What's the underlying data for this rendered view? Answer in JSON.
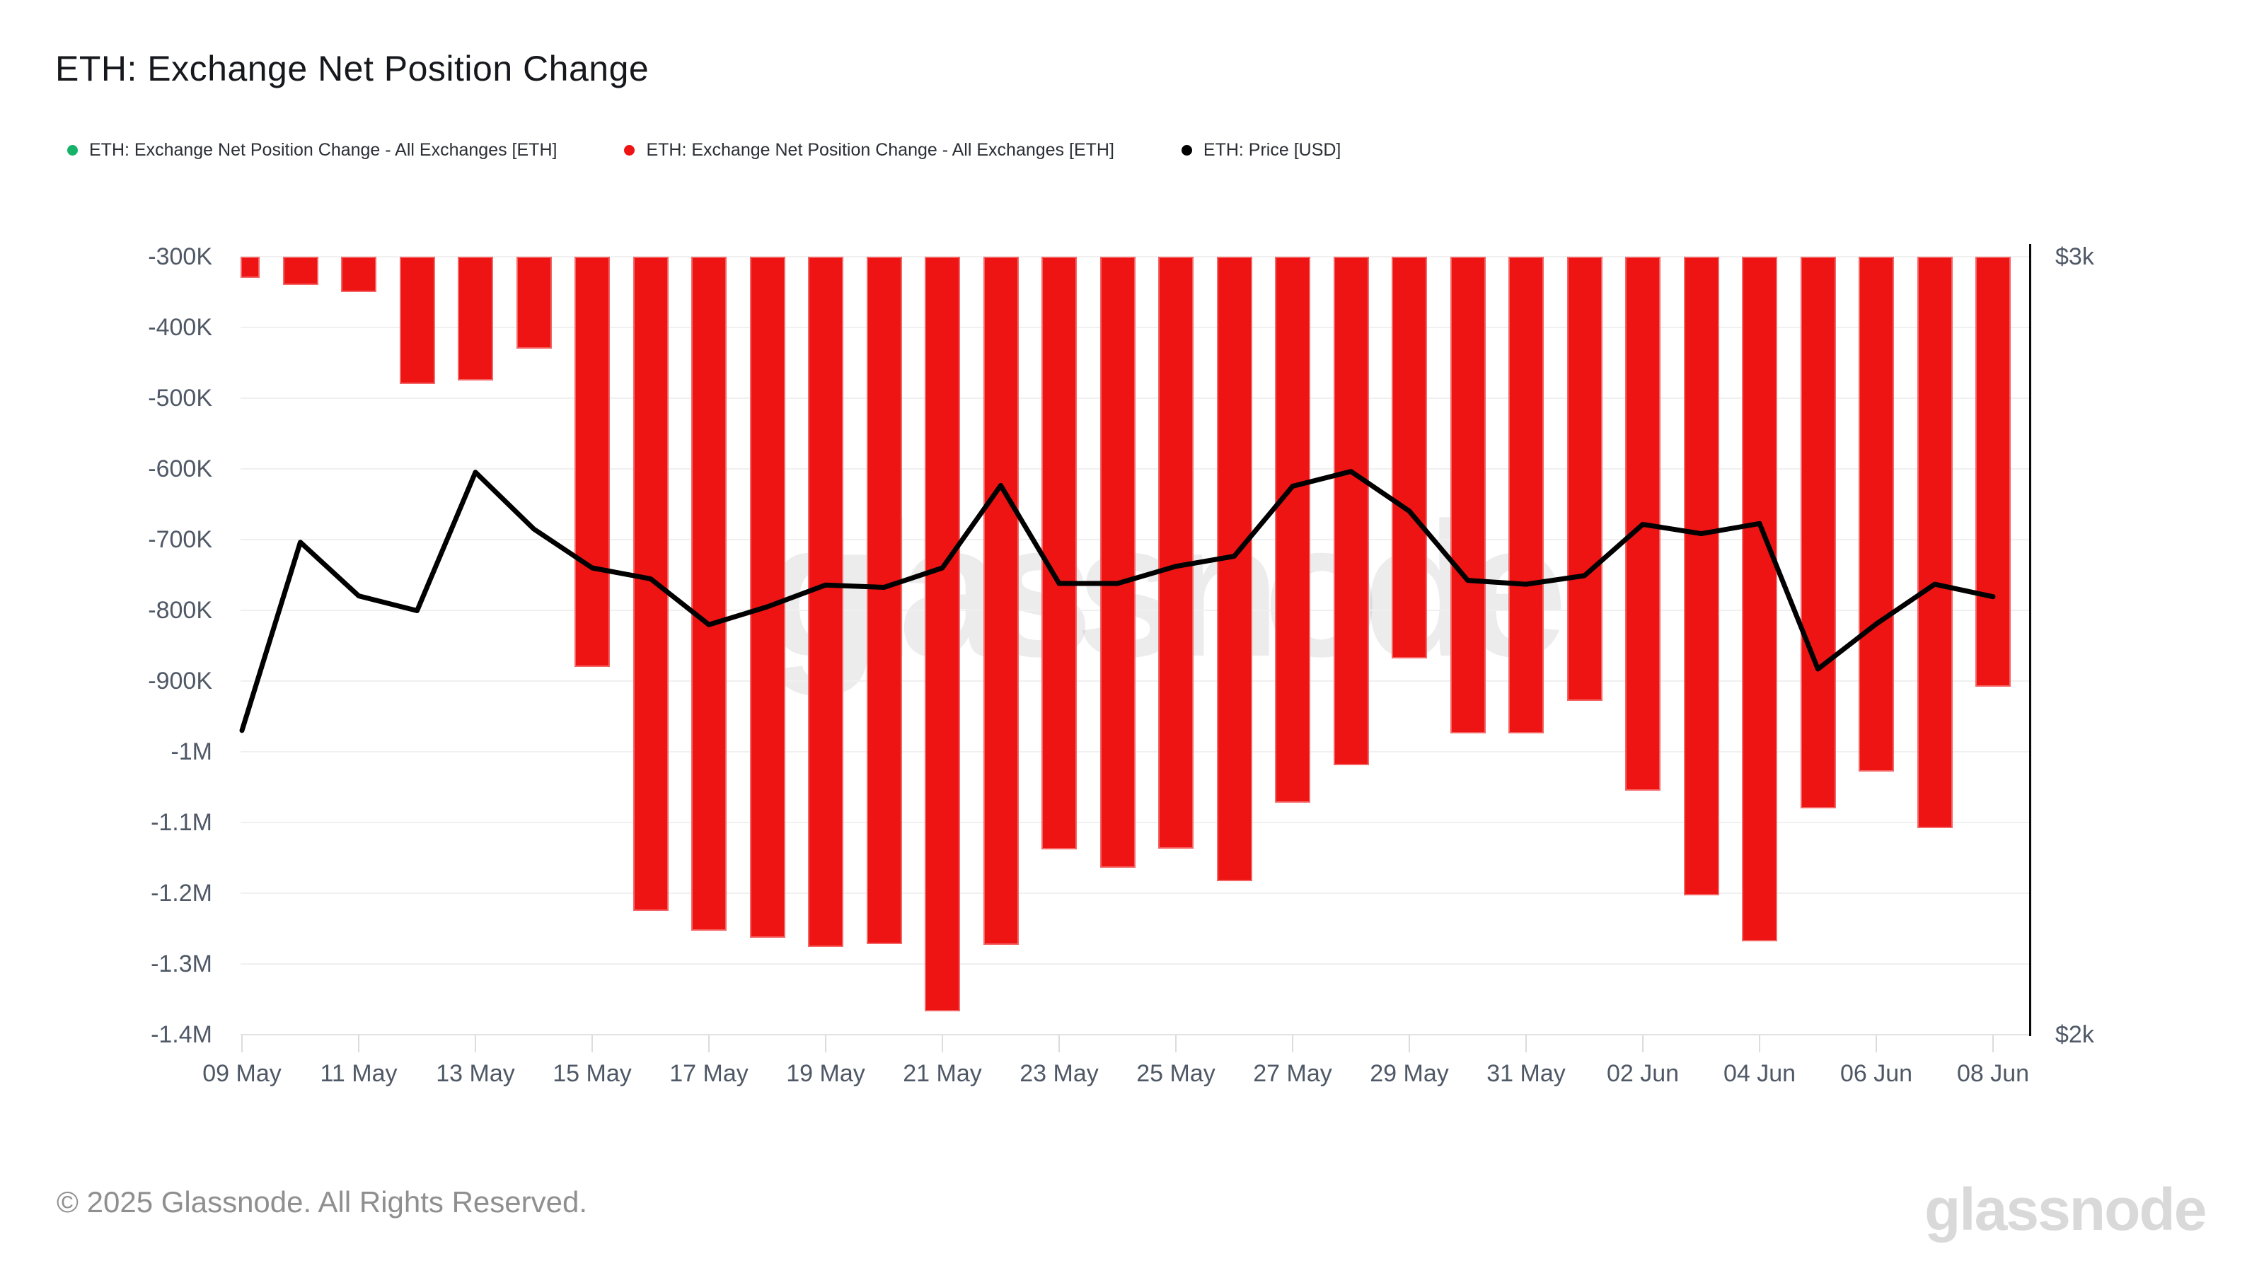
{
  "title": "ETH: Exchange Net Position Change",
  "legend": [
    {
      "label": "ETH: Exchange Net Position Change - All Exchanges [ETH]",
      "color": "#17b26a"
    },
    {
      "label": "ETH: Exchange Net Position Change - All Exchanges [ETH]",
      "color": "#ee1414"
    },
    {
      "label": "ETH: Price [USD]",
      "color": "#000000"
    }
  ],
  "watermark": "glassnode",
  "footer": {
    "copyright": "© 2025 Glassnode. All Rights Reserved.",
    "brand": "glassnode"
  },
  "chart_data": {
    "type": "bar",
    "title": "ETH: Exchange Net Position Change",
    "grid": true,
    "legend_position": "top-left",
    "categories": [
      "09 May",
      "10 May",
      "11 May",
      "12 May",
      "13 May",
      "14 May",
      "15 May",
      "16 May",
      "17 May",
      "18 May",
      "19 May",
      "20 May",
      "21 May",
      "22 May",
      "23 May",
      "24 May",
      "25 May",
      "26 May",
      "27 May",
      "28 May",
      "29 May",
      "30 May",
      "31 May",
      "01 Jun",
      "02 Jun",
      "03 Jun",
      "04 Jun",
      "05 Jun",
      "06 Jun",
      "07 Jun",
      "08 Jun"
    ],
    "series": [
      {
        "name": "ETH: Exchange Net Position Change - All Exchanges [ETH]",
        "type": "bar",
        "color": "#ee1414",
        "unit": "ETH",
        "values": [
          -330000,
          -340000,
          -350000,
          -480000,
          -475000,
          -430000,
          -880000,
          -1225000,
          -1253000,
          -1263000,
          -1276000,
          -1272000,
          -1367000,
          -1273000,
          -1138000,
          -1164000,
          -1137000,
          -1183000,
          -1072000,
          -1019000,
          -868000,
          -974000,
          -974000,
          -928000,
          -1055000,
          -1203000,
          -1268000,
          -1080000,
          -1028000,
          -1108000,
          -908000
        ]
      },
      {
        "name": "ETH: Price [USD]",
        "type": "line",
        "color": "#000000",
        "unit": "USD",
        "values": [
          2391,
          2633,
          2564,
          2545,
          2723,
          2650,
          2600,
          2586,
          2527,
          2550,
          2578,
          2575,
          2600,
          2706,
          2580,
          2580,
          2602,
          2615,
          2705,
          2724,
          2673,
          2584,
          2579,
          2590,
          2656,
          2644,
          2657,
          2470,
          2528,
          2579,
          2563
        ]
      }
    ],
    "y_left": {
      "tick_labels": [
        "-300K",
        "-400K",
        "-500K",
        "-600K",
        "-700K",
        "-800K",
        "-900K",
        "-1M",
        "-1.1M",
        "-1.2M",
        "-1.3M",
        "-1.4M"
      ],
      "tick_values": [
        -300000,
        -400000,
        -500000,
        -600000,
        -700000,
        -800000,
        -900000,
        -1000000,
        -1100000,
        -1200000,
        -1300000,
        -1400000
      ],
      "range_top": -300000,
      "range_bottom": -1400000
    },
    "y_right": {
      "tick_labels": [
        "$3k",
        "$2k"
      ],
      "range": [
        2000,
        3000
      ]
    },
    "x_tick_labels": [
      "09 May",
      "11 May",
      "13 May",
      "15 May",
      "17 May",
      "19 May",
      "21 May",
      "23 May",
      "25 May",
      "27 May",
      "29 May",
      "31 May",
      "02 Jun",
      "04 Jun",
      "06 Jun",
      "08 Jun"
    ]
  }
}
